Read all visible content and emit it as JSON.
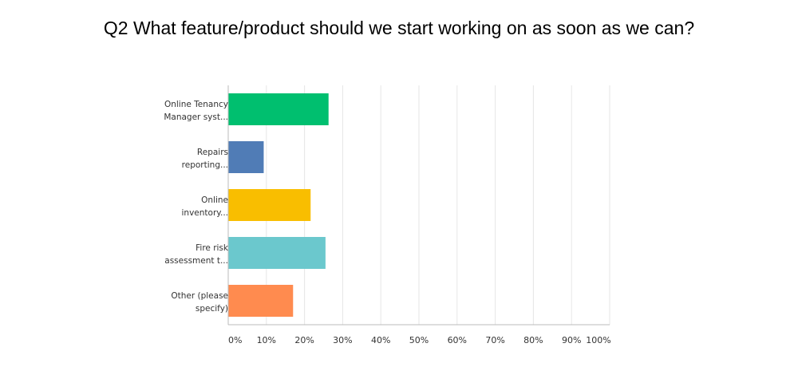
{
  "chart_data": {
    "type": "bar",
    "orientation": "horizontal",
    "title": "Q2 What feature/product should we start working on as soon as we can?",
    "categories": [
      [
        "Online Tenancy",
        "Manager syst..."
      ],
      [
        "Repairs",
        "reporting..."
      ],
      [
        "Online",
        "inventory..."
      ],
      [
        "Fire risk",
        "assessment t..."
      ],
      [
        "Other (please",
        "specify)"
      ]
    ],
    "values": [
      26.3,
      9.3,
      21.6,
      25.5,
      17.0
    ],
    "colors": [
      "#00bf6f",
      "#507cb6",
      "#f9be00",
      "#6bc8cd",
      "#ff8b4f"
    ],
    "xlim": [
      0,
      100
    ],
    "xticks": [
      "0%",
      "10%",
      "20%",
      "30%",
      "40%",
      "50%",
      "60%",
      "70%",
      "80%",
      "90%",
      "100%"
    ],
    "grid": true,
    "legend": "none"
  }
}
